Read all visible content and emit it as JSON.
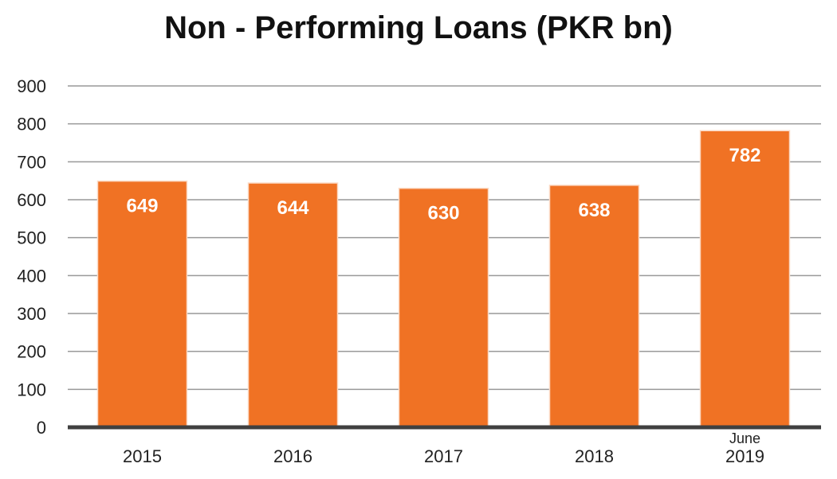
{
  "chart_data": {
    "type": "bar",
    "title": "Non - Performing Loans (PKR bn)",
    "categories": [
      {
        "line1": "",
        "line2": "2015"
      },
      {
        "line1": "",
        "line2": "2016"
      },
      {
        "line1": "",
        "line2": "2017"
      },
      {
        "line1": "",
        "line2": "2018"
      },
      {
        "line1": "June",
        "line2": "2019"
      }
    ],
    "values": [
      649,
      644,
      630,
      638,
      782
    ],
    "data_labels": [
      "649",
      "644",
      "630",
      "638",
      "782"
    ],
    "ylim": [
      0,
      900
    ],
    "yticks": [
      "0",
      "100",
      "200",
      "300",
      "400",
      "500",
      "600",
      "700",
      "800",
      "900"
    ],
    "xlabel": "",
    "ylabel": "",
    "grid": true,
    "bar_color": "#F07224",
    "grid_color": "#999999",
    "axis_color": "#404040"
  }
}
